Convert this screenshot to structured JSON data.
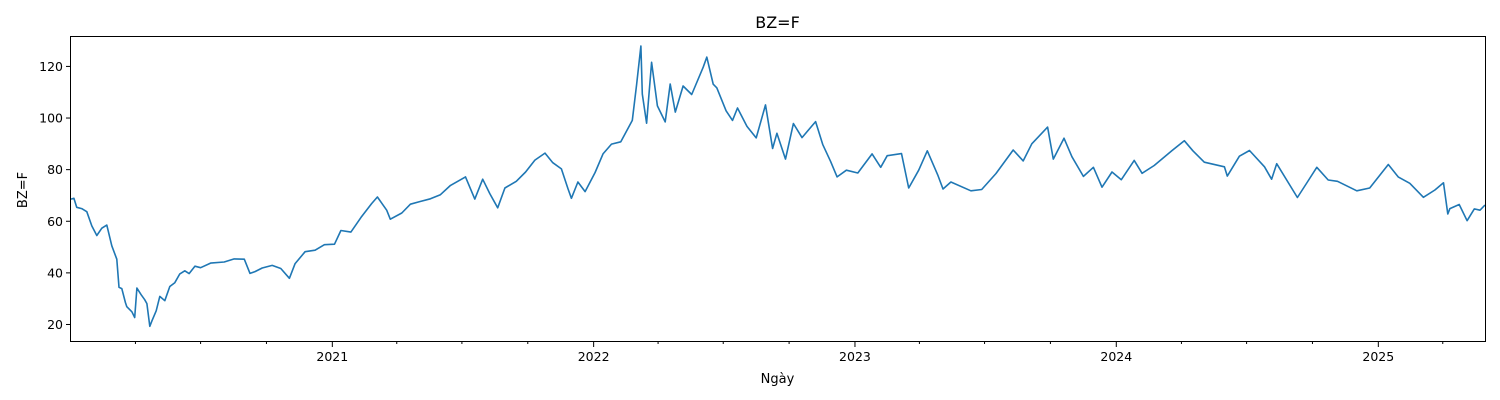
{
  "chart_data": {
    "type": "line",
    "title": "BZ=F",
    "xlabel": "Ngày",
    "ylabel": "BZ=F",
    "grid": false,
    "legend": "none",
    "x_range": [
      "2020-01-02",
      "2025-05-30"
    ],
    "ylim": [
      13.6,
      131.4
    ],
    "y_ticks": [
      20,
      40,
      60,
      80,
      100,
      120
    ],
    "x_ticks": [
      {
        "label": "2021",
        "date": "2021-01-01"
      },
      {
        "label": "2022",
        "date": "2022-01-01"
      },
      {
        "label": "2023",
        "date": "2023-01-01"
      },
      {
        "label": "2024",
        "date": "2024-01-01"
      },
      {
        "label": "2025",
        "date": "2025-01-01"
      }
    ],
    "minor_ticks": [
      "2020-04-01",
      "2020-07-01",
      "2020-10-01",
      "2021-04-01",
      "2021-07-01",
      "2021-10-01",
      "2022-04-01",
      "2022-07-01",
      "2022-10-01",
      "2023-04-01",
      "2023-07-01",
      "2023-10-01",
      "2024-04-01",
      "2024-07-01",
      "2024-10-01",
      "2025-04-01"
    ],
    "series": [
      {
        "color": "#1f77b4",
        "points": [
          [
            "2020-01-02",
            68.6
          ],
          [
            "2020-01-06",
            68.9
          ],
          [
            "2020-01-10",
            65.4
          ],
          [
            "2020-01-17",
            64.9
          ],
          [
            "2020-01-24",
            63.7
          ],
          [
            "2020-01-31",
            58.2
          ],
          [
            "2020-02-07",
            54.5
          ],
          [
            "2020-02-14",
            57.3
          ],
          [
            "2020-02-21",
            58.5
          ],
          [
            "2020-02-28",
            50.5
          ],
          [
            "2020-03-06",
            45.3
          ],
          [
            "2020-03-09",
            34.4
          ],
          [
            "2020-03-13",
            33.9
          ],
          [
            "2020-03-18",
            28.5
          ],
          [
            "2020-03-20",
            26.9
          ],
          [
            "2020-03-27",
            24.9
          ],
          [
            "2020-03-31",
            22.7
          ],
          [
            "2020-04-03",
            34.1
          ],
          [
            "2020-04-09",
            31.5
          ],
          [
            "2020-04-14",
            29.6
          ],
          [
            "2020-04-17",
            28.1
          ],
          [
            "2020-04-21",
            19.3
          ],
          [
            "2020-04-24",
            21.4
          ],
          [
            "2020-04-30",
            25.3
          ],
          [
            "2020-05-05",
            30.9
          ],
          [
            "2020-05-12",
            29.2
          ],
          [
            "2020-05-19",
            34.7
          ],
          [
            "2020-05-26",
            36.2
          ],
          [
            "2020-06-02",
            39.6
          ],
          [
            "2020-06-09",
            40.8
          ],
          [
            "2020-06-15",
            39.7
          ],
          [
            "2020-06-23",
            42.6
          ],
          [
            "2020-07-01",
            42.0
          ],
          [
            "2020-07-15",
            43.8
          ],
          [
            "2020-08-03",
            44.2
          ],
          [
            "2020-08-17",
            45.4
          ],
          [
            "2020-08-31",
            45.3
          ],
          [
            "2020-09-08",
            39.8
          ],
          [
            "2020-09-15",
            40.5
          ],
          [
            "2020-09-25",
            41.9
          ],
          [
            "2020-10-09",
            42.9
          ],
          [
            "2020-10-21",
            41.7
          ],
          [
            "2020-11-02",
            37.9
          ],
          [
            "2020-11-10",
            43.6
          ],
          [
            "2020-11-24",
            48.2
          ],
          [
            "2020-12-08",
            48.8
          ],
          [
            "2020-12-21",
            50.9
          ],
          [
            "2021-01-04",
            51.1
          ],
          [
            "2021-01-13",
            56.4
          ],
          [
            "2021-01-27",
            55.8
          ],
          [
            "2021-02-10",
            61.5
          ],
          [
            "2021-02-25",
            66.9
          ],
          [
            "2021-03-05",
            69.4
          ],
          [
            "2021-03-18",
            64.3
          ],
          [
            "2021-03-23",
            60.8
          ],
          [
            "2021-04-08",
            63.2
          ],
          [
            "2021-04-20",
            66.6
          ],
          [
            "2021-05-03",
            67.6
          ],
          [
            "2021-05-18",
            68.7
          ],
          [
            "2021-06-01",
            70.3
          ],
          [
            "2021-06-15",
            73.9
          ],
          [
            "2021-07-06",
            77.2
          ],
          [
            "2021-07-19",
            68.6
          ],
          [
            "2021-07-30",
            76.3
          ],
          [
            "2021-08-09",
            70.7
          ],
          [
            "2021-08-20",
            65.2
          ],
          [
            "2021-08-30",
            72.9
          ],
          [
            "2021-09-15",
            75.5
          ],
          [
            "2021-09-28",
            79.1
          ],
          [
            "2021-10-11",
            83.7
          ],
          [
            "2021-10-25",
            86.4
          ],
          [
            "2021-11-05",
            82.7
          ],
          [
            "2021-11-17",
            80.3
          ],
          [
            "2021-11-26",
            72.7
          ],
          [
            "2021-12-01",
            68.9
          ],
          [
            "2021-12-10",
            75.2
          ],
          [
            "2021-12-20",
            71.5
          ],
          [
            "2022-01-03",
            78.9
          ],
          [
            "2022-01-14",
            86.1
          ],
          [
            "2022-01-26",
            89.9
          ],
          [
            "2022-02-08",
            90.8
          ],
          [
            "2022-02-24",
            99.1
          ],
          [
            "2022-03-02",
            112.9
          ],
          [
            "2022-03-08",
            127.9
          ],
          [
            "2022-03-10",
            109.3
          ],
          [
            "2022-03-16",
            98.0
          ],
          [
            "2022-03-23",
            121.6
          ],
          [
            "2022-03-31",
            104.7
          ],
          [
            "2022-04-11",
            98.5
          ],
          [
            "2022-04-18",
            113.2
          ],
          [
            "2022-04-25",
            102.3
          ],
          [
            "2022-05-06",
            112.4
          ],
          [
            "2022-05-18",
            109.1
          ],
          [
            "2022-06-03",
            119.7
          ],
          [
            "2022-06-08",
            123.6
          ],
          [
            "2022-06-17",
            113.1
          ],
          [
            "2022-06-22",
            111.7
          ],
          [
            "2022-07-05",
            102.8
          ],
          [
            "2022-07-14",
            99.1
          ],
          [
            "2022-07-21",
            103.9
          ],
          [
            "2022-08-03",
            96.8
          ],
          [
            "2022-08-16",
            92.3
          ],
          [
            "2022-08-29",
            105.1
          ],
          [
            "2022-09-08",
            88.2
          ],
          [
            "2022-09-14",
            94.1
          ],
          [
            "2022-09-26",
            84.1
          ],
          [
            "2022-10-07",
            97.9
          ],
          [
            "2022-10-19",
            92.4
          ],
          [
            "2022-11-07",
            98.6
          ],
          [
            "2022-11-17",
            89.8
          ],
          [
            "2022-11-28",
            83.2
          ],
          [
            "2022-12-07",
            77.2
          ],
          [
            "2022-12-20",
            79.8
          ],
          [
            "2023-01-05",
            78.7
          ],
          [
            "2023-01-25",
            86.1
          ],
          [
            "2023-02-06",
            80.9
          ],
          [
            "2023-02-15",
            85.4
          ],
          [
            "2023-03-07",
            86.2
          ],
          [
            "2023-03-17",
            72.9
          ],
          [
            "2023-03-31",
            79.8
          ],
          [
            "2023-04-12",
            87.3
          ],
          [
            "2023-04-27",
            77.7
          ],
          [
            "2023-05-04",
            72.5
          ],
          [
            "2023-05-15",
            75.2
          ],
          [
            "2023-06-12",
            71.8
          ],
          [
            "2023-06-27",
            72.3
          ],
          [
            "2023-07-17",
            78.5
          ],
          [
            "2023-08-10",
            87.6
          ],
          [
            "2023-08-24",
            83.4
          ],
          [
            "2023-09-05",
            90.0
          ],
          [
            "2023-09-27",
            96.5
          ],
          [
            "2023-10-05",
            84.1
          ],
          [
            "2023-10-20",
            92.2
          ],
          [
            "2023-10-31",
            85.0
          ],
          [
            "2023-11-16",
            77.4
          ],
          [
            "2023-11-30",
            80.9
          ],
          [
            "2023-12-12",
            73.2
          ],
          [
            "2023-12-26",
            79.1
          ],
          [
            "2024-01-08",
            76.1
          ],
          [
            "2024-01-26",
            83.6
          ],
          [
            "2024-02-06",
            78.6
          ],
          [
            "2024-02-23",
            81.6
          ],
          [
            "2024-03-19",
            87.4
          ],
          [
            "2024-04-05",
            91.2
          ],
          [
            "2024-04-17",
            87.3
          ],
          [
            "2024-05-03",
            82.9
          ],
          [
            "2024-05-31",
            81.1
          ],
          [
            "2024-06-04",
            77.5
          ],
          [
            "2024-06-21",
            85.2
          ],
          [
            "2024-07-05",
            87.4
          ],
          [
            "2024-07-26",
            81.1
          ],
          [
            "2024-08-05",
            76.3
          ],
          [
            "2024-08-12",
            82.3
          ],
          [
            "2024-09-10",
            69.2
          ],
          [
            "2024-09-24",
            75.2
          ],
          [
            "2024-10-07",
            80.9
          ],
          [
            "2024-10-23",
            76.0
          ],
          [
            "2024-11-05",
            75.5
          ],
          [
            "2024-12-02",
            71.8
          ],
          [
            "2024-12-20",
            72.9
          ],
          [
            "2025-01-15",
            82.0
          ],
          [
            "2025-01-29",
            77.1
          ],
          [
            "2025-02-14",
            74.7
          ],
          [
            "2025-03-05",
            69.3
          ],
          [
            "2025-03-21",
            72.1
          ],
          [
            "2025-04-02",
            74.9
          ],
          [
            "2025-04-08",
            62.8
          ],
          [
            "2025-04-11",
            64.9
          ],
          [
            "2025-04-24",
            66.5
          ],
          [
            "2025-05-05",
            60.2
          ],
          [
            "2025-05-15",
            64.8
          ],
          [
            "2025-05-23",
            64.3
          ],
          [
            "2025-05-30",
            66.3
          ]
        ]
      }
    ]
  }
}
